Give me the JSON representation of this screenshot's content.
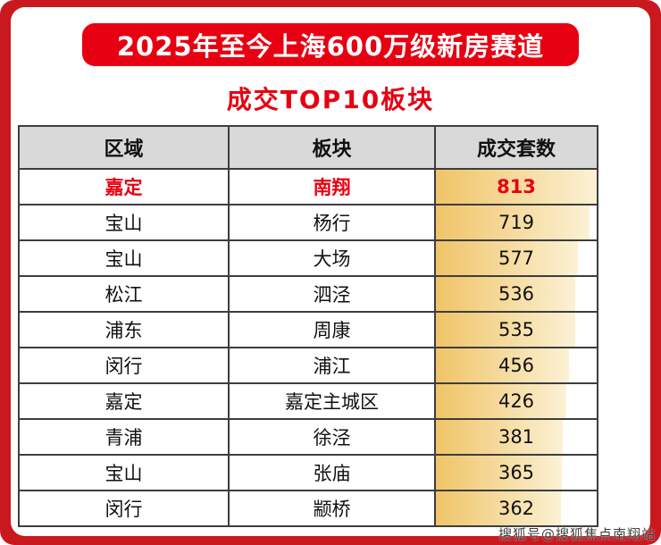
{
  "page": {
    "frame_color": "#c9191f",
    "watermark": "搜狐号@搜狐焦点南翔站"
  },
  "header": {
    "banner_title": "2025年至今上海600万级新房赛道",
    "banner_bg": "#e60012",
    "banner_text_color": "#ffffff",
    "subtitle": "成交TOP10板块",
    "subtitle_color": "#e60012"
  },
  "chart_data": {
    "type": "table",
    "title": "2025年至今上海600万级新房赛道 成交TOP10板块",
    "columns": [
      "区域",
      "板块",
      "成交套数"
    ],
    "rows": [
      {
        "region": "嘉定",
        "sector": "南翔",
        "count": 813,
        "highlight": true
      },
      {
        "region": "宝山",
        "sector": "杨行",
        "count": 719,
        "highlight": false
      },
      {
        "region": "宝山",
        "sector": "大场",
        "count": 577,
        "highlight": false
      },
      {
        "region": "松江",
        "sector": "泗泾",
        "count": 536,
        "highlight": false
      },
      {
        "region": "浦东",
        "sector": "周康",
        "count": 535,
        "highlight": false
      },
      {
        "region": "闵行",
        "sector": "浦江",
        "count": 456,
        "highlight": false
      },
      {
        "region": "嘉定",
        "sector": "嘉定主城区",
        "count": 426,
        "highlight": false
      },
      {
        "region": "青浦",
        "sector": "徐泾",
        "count": 381,
        "highlight": false
      },
      {
        "region": "宝山",
        "sector": "张庙",
        "count": 365,
        "highlight": false
      },
      {
        "region": "闵行",
        "sector": "颛桥",
        "count": 362,
        "highlight": false
      }
    ],
    "header_bg": "#d9d9d9",
    "bar_color_start": "#f0c468",
    "bar_color_end": "#fbf1d4",
    "highlight_color": "#e60012",
    "legend": "none",
    "grid": "table-borders"
  }
}
